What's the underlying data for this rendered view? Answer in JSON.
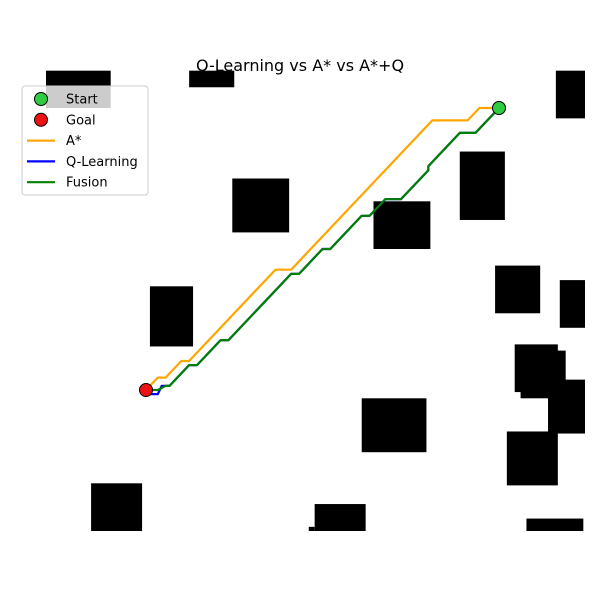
{
  "chart_data": {
    "type": "line",
    "title": "Q-Learning vs A* vs A*+Q",
    "xlabel": "",
    "ylabel": "",
    "xlim": [
      0,
      100
    ],
    "ylim": [
      0,
      100
    ],
    "grid": false,
    "axes_visible": false,
    "legend": {
      "placement": "top-left",
      "entries": [
        {
          "label": "Start",
          "kind": "marker",
          "color": "#2ecc40"
        },
        {
          "label": "Goal",
          "kind": "marker",
          "color": "#ee1111"
        },
        {
          "label": "A*",
          "kind": "line",
          "color": "#ffa500"
        },
        {
          "label": "Q-Learning",
          "kind": "line",
          "color": "#0000ff"
        },
        {
          "label": "Fusion",
          "kind": "line",
          "color": "#008000"
        }
      ]
    },
    "start": {
      "x": 90,
      "y": 91
    },
    "goal": {
      "x": 0,
      "y": 23
    },
    "obstacles": [
      {
        "x0": -25.5,
        "x1": -9,
        "y0": 91,
        "y1": 100
      },
      {
        "x0": 11,
        "x1": 22.5,
        "y0": 96,
        "y1": 100
      },
      {
        "x0": 104.5,
        "x1": 113,
        "y0": 88.5,
        "y1": 100
      },
      {
        "x0": 80,
        "x1": 91.5,
        "y0": 64,
        "y1": 80.5
      },
      {
        "x0": 22,
        "x1": 36.5,
        "y0": 61,
        "y1": 74
      },
      {
        "x0": 58,
        "x1": 72.5,
        "y0": 57,
        "y1": 68.5
      },
      {
        "x0": 1,
        "x1": 12,
        "y0": 33.5,
        "y1": 48
      },
      {
        "x0": 89,
        "x1": 100.5,
        "y0": 41.5,
        "y1": 53
      },
      {
        "x0": 105.5,
        "x1": 112,
        "y0": 38,
        "y1": 49.5
      },
      {
        "x0": 94,
        "x1": 105,
        "y0": 22.5,
        "y1": 34
      },
      {
        "x0": 95.5,
        "x1": 107,
        "y0": 21,
        "y1": 32.5
      },
      {
        "x0": 102.5,
        "x1": 112,
        "y0": 12.5,
        "y1": 25.5
      },
      {
        "x0": 55,
        "x1": 71.5,
        "y0": 8,
        "y1": 21
      },
      {
        "x0": 92,
        "x1": 105,
        "y0": 0,
        "y1": 13
      },
      {
        "x0": -14,
        "x1": -1,
        "y0": -11,
        "y1": 0.5
      },
      {
        "x0": 43,
        "x1": 56,
        "y0": -11,
        "y1": -4.5
      },
      {
        "x0": 41.5,
        "x1": 43,
        "y0": -11,
        "y1": -10
      },
      {
        "x0": 97,
        "x1": 111.5,
        "y0": -11,
        "y1": -8
      }
    ],
    "series": [
      {
        "name": "A*",
        "color": "#ffa500",
        "x": [
          90,
          85,
          82,
          73,
          37,
          33,
          11,
          9,
          5,
          3,
          2,
          1,
          0
        ],
        "y": [
          91,
          91,
          88,
          88,
          52,
          52,
          30,
          30,
          26,
          26,
          25,
          24,
          23
        ]
      },
      {
        "name": "Q-Learning",
        "color": "#0000ff",
        "x": [
          90,
          84,
          80,
          72,
          72,
          65,
          61,
          57,
          55,
          47,
          45,
          39,
          37,
          21,
          19,
          13,
          11,
          6,
          4,
          3,
          1,
          0
        ],
        "y": [
          91,
          85,
          85,
          77,
          76,
          69,
          69,
          65,
          65,
          57,
          57,
          51,
          51,
          35,
          35,
          29,
          29,
          24,
          24,
          22,
          22,
          23
        ]
      },
      {
        "name": "Fusion",
        "color": "#008000",
        "x": [
          90,
          84,
          80,
          72,
          72,
          65,
          61,
          57,
          55,
          47,
          45,
          39,
          37,
          21,
          19,
          13,
          11,
          6,
          5,
          3,
          1,
          0
        ],
        "y": [
          91,
          85,
          85,
          77,
          76,
          69,
          69,
          65,
          65,
          57,
          57,
          51,
          51,
          35,
          35,
          29,
          29,
          24,
          24,
          23,
          23,
          23
        ]
      }
    ]
  }
}
